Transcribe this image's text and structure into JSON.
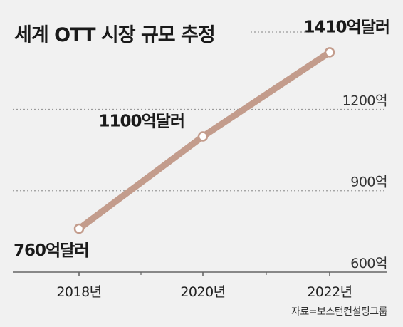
{
  "chart_data": {
    "type": "line",
    "title": "세계 OTT 시장 규모 추정",
    "x": [
      "2018년",
      "2020년",
      "2022년"
    ],
    "series": [
      {
        "values": [
          760,
          1100,
          1410
        ],
        "data_labels": [
          "760억달러",
          "1100억달러",
          "1410억달러"
        ]
      }
    ],
    "y_ticks": [
      {
        "value": 600,
        "label": "600억"
      },
      {
        "value": 900,
        "label": "900억"
      },
      {
        "value": 1200,
        "label": "1200억"
      }
    ],
    "ylim": [
      600,
      1440
    ],
    "grid": true,
    "line_color": "#c39c8c",
    "source": "자료=보스턴컨설팅그룹"
  }
}
